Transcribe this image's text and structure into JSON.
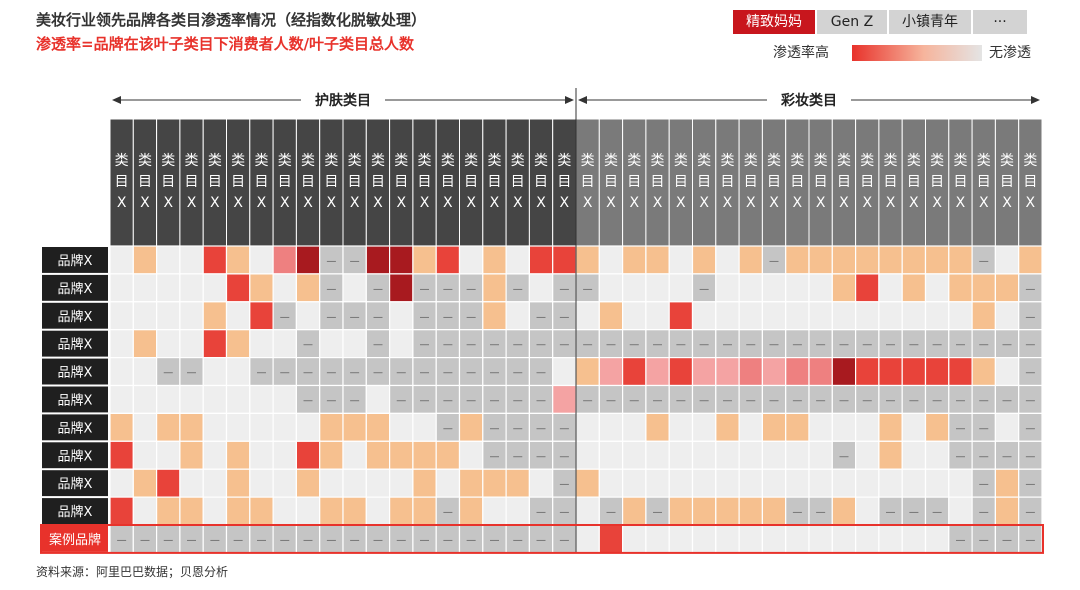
{
  "title": "美妆行业领先品牌各类目渗透率情况（经指数化脱敏处理）",
  "subtitle": "渗透率=品牌在该叶子类目下消费者人数/叶子类目总人数",
  "tabs": [
    {
      "label": "精致妈妈",
      "active": true
    },
    {
      "label": "Gen Z",
      "active": false
    },
    {
      "label": "小镇青年",
      "active": false
    },
    {
      "label": "···",
      "active": false
    }
  ],
  "legend": {
    "high": "渗透率高",
    "none": "无渗透"
  },
  "source": "资料来源：阿里巴巴数据；贝恩分析",
  "colors": {
    "header_skin": "#454545",
    "header_makeup": "#7a7a7a",
    "row_label_bg": "#1f1f1f",
    "highlight": "#e8322b",
    "level_0": "#eeeeee",
    "level_1": "#f6c08f",
    "level_2": "#f4a3a3",
    "level_3": "#ee8080",
    "level_4": "#e8433a",
    "level_5": "#a81a1f",
    "no_data": "#c5c5c5"
  },
  "chart_data": {
    "type": "heatmap",
    "groups": [
      {
        "label": "护肤类目",
        "count": 20
      },
      {
        "label": "彩妆类目",
        "count": 20
      }
    ],
    "column_label": "类目X",
    "row_labels": [
      "品牌X",
      "品牌X",
      "品牌X",
      "品牌X",
      "品牌X",
      "品牌X",
      "品牌X",
      "品牌X",
      "品牌X",
      "品牌X",
      "案例品牌"
    ],
    "highlight_row": 10,
    "no_data_mark": "—",
    "levels_note": "0 = no penetration, 1-5 = increasing penetration, -1 = no data (—)",
    "values": [
      [
        0,
        1,
        0,
        0,
        4,
        1,
        0,
        3,
        5,
        -1,
        -1,
        5,
        5,
        1,
        4,
        0,
        1,
        0,
        4,
        4,
        1,
        0,
        1,
        1,
        0,
        1,
        0,
        1,
        -1,
        1,
        1,
        1,
        1,
        1,
        1,
        1,
        1,
        -1,
        0,
        1
      ],
      [
        0,
        0,
        0,
        0,
        0,
        4,
        1,
        0,
        1,
        -1,
        0,
        -1,
        5,
        -1,
        -1,
        -1,
        1,
        -1,
        0,
        -1,
        -1,
        0,
        0,
        0,
        0,
        -1,
        0,
        0,
        0,
        0,
        0,
        1,
        4,
        0,
        1,
        0,
        1,
        1,
        1,
        -1
      ],
      [
        0,
        0,
        0,
        0,
        1,
        0,
        4,
        -1,
        0,
        -1,
        -1,
        -1,
        0,
        -1,
        -1,
        -1,
        1,
        0,
        -1,
        -1,
        0,
        1,
        0,
        0,
        4,
        0,
        0,
        0,
        0,
        0,
        0,
        0,
        0,
        0,
        0,
        0,
        0,
        1,
        0,
        -1
      ],
      [
        0,
        1,
        0,
        0,
        4,
        1,
        0,
        0,
        -1,
        0,
        0,
        -1,
        0,
        -1,
        -1,
        -1,
        -1,
        -1,
        -1,
        -1,
        -1,
        -1,
        -1,
        -1,
        -1,
        -1,
        -1,
        -1,
        -1,
        -1,
        -1,
        -1,
        -1,
        -1,
        -1,
        -1,
        -1,
        -1,
        -1,
        -1
      ],
      [
        0,
        0,
        -1,
        -1,
        0,
        0,
        -1,
        -1,
        -1,
        -1,
        -1,
        -1,
        -1,
        -1,
        -1,
        -1,
        -1,
        -1,
        -1,
        0,
        1,
        2,
        4,
        2,
        4,
        2,
        2,
        3,
        2,
        3,
        3,
        5,
        4,
        4,
        4,
        4,
        4,
        1,
        0,
        -1
      ],
      [
        0,
        0,
        0,
        0,
        0,
        0,
        0,
        0,
        -1,
        -1,
        -1,
        0,
        -1,
        -1,
        -1,
        -1,
        -1,
        -1,
        -1,
        2,
        -1,
        -1,
        -1,
        -1,
        -1,
        -1,
        -1,
        -1,
        -1,
        -1,
        -1,
        -1,
        -1,
        -1,
        -1,
        -1,
        -1,
        -1,
        -1,
        -1
      ],
      [
        1,
        0,
        1,
        1,
        0,
        0,
        0,
        0,
        0,
        1,
        1,
        1,
        0,
        0,
        -1,
        1,
        -1,
        -1,
        -1,
        -1,
        0,
        0,
        0,
        1,
        0,
        0,
        1,
        0,
        1,
        1,
        0,
        0,
        0,
        1,
        0,
        1,
        -1,
        -1,
        0,
        -1
      ],
      [
        4,
        0,
        0,
        1,
        0,
        1,
        0,
        0,
        4,
        1,
        0,
        1,
        1,
        1,
        1,
        0,
        -1,
        -1,
        -1,
        -1,
        0,
        0,
        0,
        0,
        0,
        0,
        0,
        0,
        0,
        0,
        0,
        -1,
        0,
        1,
        0,
        0,
        -1,
        -1,
        -1,
        -1
      ],
      [
        0,
        1,
        4,
        0,
        0,
        1,
        0,
        0,
        1,
        0,
        0,
        0,
        0,
        1,
        0,
        1,
        1,
        1,
        0,
        -1,
        1,
        0,
        0,
        0,
        0,
        0,
        0,
        0,
        0,
        0,
        0,
        0,
        0,
        0,
        0,
        0,
        0,
        -1,
        1,
        -1
      ],
      [
        4,
        0,
        1,
        1,
        0,
        1,
        1,
        0,
        0,
        1,
        1,
        0,
        1,
        1,
        -1,
        1,
        0,
        0,
        -1,
        -1,
        0,
        -1,
        1,
        -1,
        1,
        1,
        1,
        1,
        1,
        -1,
        -1,
        1,
        0,
        -1,
        -1,
        -1,
        0,
        -1,
        1,
        -1
      ],
      [
        -1,
        -1,
        -1,
        -1,
        -1,
        -1,
        -1,
        -1,
        -1,
        -1,
        -1,
        -1,
        -1,
        -1,
        -1,
        -1,
        -1,
        -1,
        -1,
        -1,
        0,
        4,
        0,
        0,
        0,
        0,
        0,
        0,
        0,
        0,
        0,
        0,
        0,
        0,
        0,
        0,
        -1,
        -1,
        -1,
        -1
      ]
    ]
  }
}
